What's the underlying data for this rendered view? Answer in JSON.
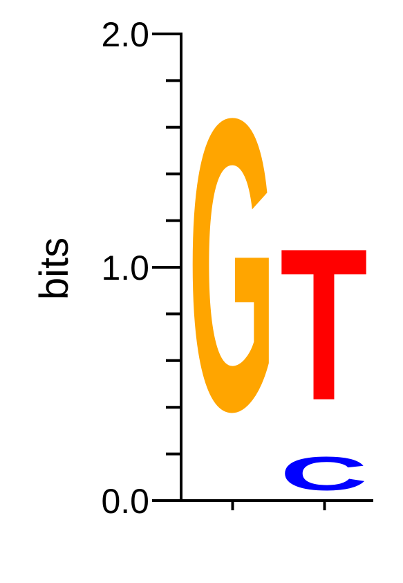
{
  "chart_data": {
    "type": "sequence-logo",
    "ylabel": "bits",
    "ylim": [
      0,
      2.0
    ],
    "y_tick_labels": [
      {
        "value": 0.0,
        "label": "0.0"
      },
      {
        "value": 1.0,
        "label": "1.0"
      },
      {
        "value": 2.0,
        "label": "2.0"
      }
    ],
    "y_minor_ticks": [
      0.2,
      0.4,
      0.6,
      0.8,
      1.2,
      1.4,
      1.6,
      1.8
    ],
    "positions": [
      {
        "index": 1,
        "letters": [
          {
            "letter": "G",
            "bits": 2.0,
            "color": "#FFA500"
          }
        ]
      },
      {
        "index": 2,
        "letters": [
          {
            "letter": "C",
            "bits": 0.23,
            "color": "#0000FF"
          },
          {
            "letter": "T",
            "bits": 1.04,
            "color": "#FF0000"
          }
        ]
      }
    ]
  }
}
